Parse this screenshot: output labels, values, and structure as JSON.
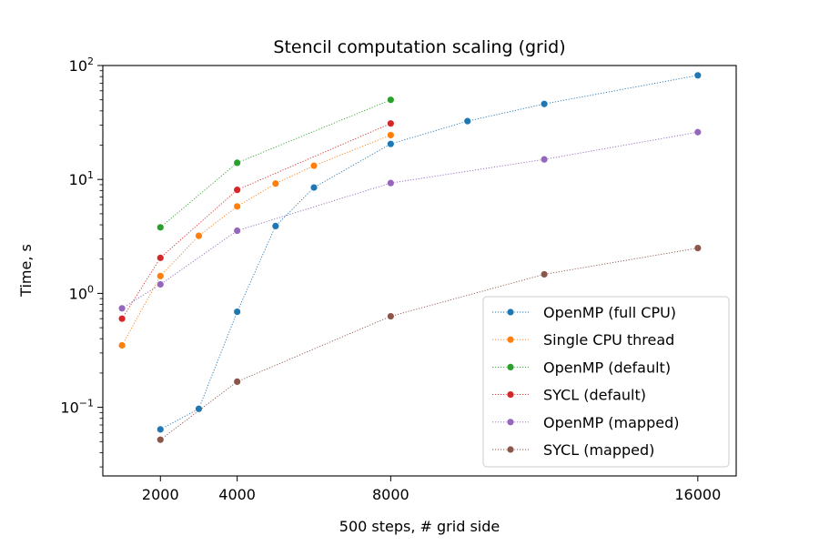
{
  "chart_data": {
    "type": "line",
    "title": "Stencil computation scaling (grid)",
    "xlabel": "500 steps, # grid side",
    "ylabel": "Time, s",
    "xscale": "linear",
    "yscale": "log",
    "xlim": [
      500,
      17000
    ],
    "ylim": [
      0.025,
      100
    ],
    "xticks": [
      2000,
      4000,
      8000,
      16000
    ],
    "xtick_labels": [
      "2000",
      "4000",
      "8000",
      "16000"
    ],
    "yticks": [
      0.1,
      1,
      10,
      100
    ],
    "ytick_labels": [
      {
        "base": "10",
        "exp": "−1"
      },
      {
        "base": "10",
        "exp": "0"
      },
      {
        "base": "10",
        "exp": "1"
      },
      {
        "base": "10",
        "exp": "2"
      }
    ],
    "grid": false,
    "legend_position": "lower right",
    "line_style": "dotted",
    "marker": "circle",
    "series": [
      {
        "name": "OpenMP (full CPU)",
        "color": "#1f77b4",
        "x": [
          2000,
          3000,
          4000,
          5000,
          6000,
          8000,
          10000,
          12000,
          16000
        ],
        "y": [
          0.064,
          0.097,
          0.69,
          3.9,
          8.5,
          20.5,
          32.5,
          46,
          82
        ]
      },
      {
        "name": "Single CPU thread",
        "color": "#ff7f0e",
        "x": [
          1000,
          2000,
          3000,
          4000,
          5000,
          6000,
          8000
        ],
        "y": [
          0.35,
          1.42,
          3.2,
          5.8,
          9.2,
          13.2,
          24.5
        ]
      },
      {
        "name": "OpenMP (default)",
        "color": "#2ca02c",
        "x": [
          2000,
          4000,
          8000
        ],
        "y": [
          3.8,
          14,
          50
        ]
      },
      {
        "name": "SYCL (default)",
        "color": "#d62728",
        "x": [
          1000,
          2000,
          4000,
          8000
        ],
        "y": [
          0.6,
          2.05,
          8.1,
          31
        ]
      },
      {
        "name": "OpenMP (mapped)",
        "color": "#9467bd",
        "x": [
          1000,
          2000,
          4000,
          8000,
          12000,
          16000
        ],
        "y": [
          0.74,
          1.2,
          3.55,
          9.3,
          15,
          26
        ]
      },
      {
        "name": "SYCL (mapped)",
        "color": "#8c564b",
        "x": [
          2000,
          4000,
          8000,
          12000,
          16000
        ],
        "y": [
          0.052,
          0.168,
          0.63,
          1.47,
          2.5
        ]
      }
    ]
  }
}
